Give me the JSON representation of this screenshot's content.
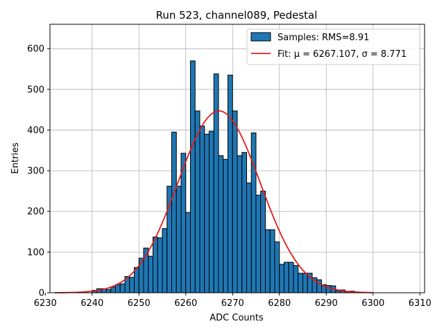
{
  "chart_data": {
    "type": "bar",
    "title": "Run 523, channel089, Pedestal",
    "xlabel": "ADC Counts",
    "ylabel": "Entries",
    "xlim": [
      6231,
      6311
    ],
    "ylim": [
      0,
      660
    ],
    "xticks": [
      6230,
      6240,
      6250,
      6260,
      6270,
      6280,
      6290,
      6300,
      6310
    ],
    "yticks": [
      0,
      100,
      200,
      300,
      400,
      500,
      600
    ],
    "grid": true,
    "legend_position": "top-right",
    "colors": {
      "bar_fill": "#1f77b4",
      "bar_edge": "#000000",
      "fit_line": "#e41a1c",
      "grid": "#b0b0b0"
    },
    "histogram": {
      "name": "Samples: RMS=8.91",
      "bin_width": 1,
      "bins": [
        [
          6240,
          6
        ],
        [
          6241,
          10
        ],
        [
          6242,
          10
        ],
        [
          6243,
          8
        ],
        [
          6244,
          14
        ],
        [
          6245,
          20
        ],
        [
          6246,
          22
        ],
        [
          6247,
          40
        ],
        [
          6248,
          38
        ],
        [
          6249,
          62
        ],
        [
          6250,
          85
        ],
        [
          6251,
          110
        ],
        [
          6252,
          90
        ],
        [
          6253,
          137
        ],
        [
          6254,
          135
        ],
        [
          6255,
          158
        ],
        [
          6256,
          262
        ],
        [
          6257,
          395
        ],
        [
          6258,
          262
        ],
        [
          6259,
          343
        ],
        [
          6260,
          197
        ],
        [
          6261,
          570
        ],
        [
          6262,
          447
        ],
        [
          6263,
          410
        ],
        [
          6264,
          390
        ],
        [
          6265,
          397
        ],
        [
          6266,
          538
        ],
        [
          6267,
          337
        ],
        [
          6268,
          328
        ],
        [
          6269,
          535
        ],
        [
          6270,
          447
        ],
        [
          6271,
          337
        ],
        [
          6272,
          345
        ],
        [
          6273,
          270
        ],
        [
          6274,
          393
        ],
        [
          6275,
          240
        ],
        [
          6276,
          250
        ],
        [
          6277,
          155
        ],
        [
          6278,
          155
        ],
        [
          6279,
          125
        ],
        [
          6280,
          70
        ],
        [
          6281,
          75
        ],
        [
          6282,
          75
        ],
        [
          6283,
          67
        ],
        [
          6284,
          48
        ],
        [
          6285,
          48
        ],
        [
          6286,
          48
        ],
        [
          6287,
          37
        ],
        [
          6288,
          32
        ],
        [
          6289,
          20
        ],
        [
          6290,
          18
        ],
        [
          6291,
          17
        ],
        [
          6292,
          5
        ],
        [
          6293,
          7
        ],
        [
          6294,
          3
        ],
        [
          6295,
          4
        ],
        [
          6296,
          2
        ],
        [
          6297,
          1
        ]
      ]
    },
    "fit": {
      "name": "Fit: μ = 6267.107, σ = 8.771",
      "type": "gaussian",
      "mu": 6267.107,
      "sigma": 8.771,
      "amplitude": 447,
      "x_range": [
        6232,
        6300
      ]
    }
  }
}
